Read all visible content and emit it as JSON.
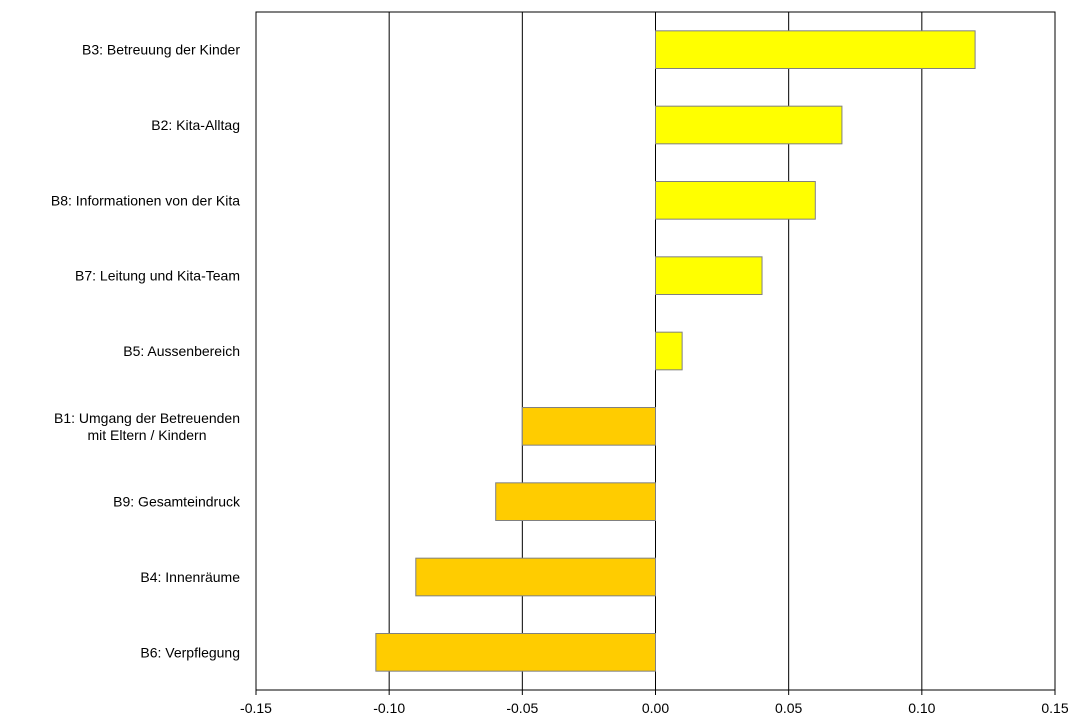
{
  "chart_data": {
    "type": "bar",
    "orientation": "horizontal",
    "categories": [
      "B3: Betreuung der Kinder",
      "B2: Kita-Alltag",
      "B8: Informationen von der Kita",
      "B7: Leitung und Kita-Team",
      "B5: Aussenbereich",
      "B1: Umgang der Betreuenden\nmit Eltern / Kindern",
      "B9: Gesamteindruck",
      "B4: Innenräume",
      "B6: Verpflegung"
    ],
    "values": [
      0.12,
      0.07,
      0.06,
      0.04,
      0.01,
      -0.05,
      -0.06,
      -0.09,
      -0.105
    ],
    "xlim": [
      -0.15,
      0.15
    ],
    "xticks": [
      -0.15,
      -0.1,
      -0.05,
      0.0,
      0.05,
      0.1,
      0.15
    ],
    "xtick_labels": [
      "-0.15",
      "-0.10",
      "-0.05",
      "0.00",
      "0.05",
      "0.10",
      "0.15"
    ],
    "grid": "vertical",
    "legend": "none",
    "title": "",
    "xlabel": "",
    "ylabel": "",
    "colors": {
      "positive": "#ffff00",
      "negative": "#ffcc00",
      "bar_border": "#808080",
      "gridline": "#000000",
      "frame": "#000000"
    }
  }
}
